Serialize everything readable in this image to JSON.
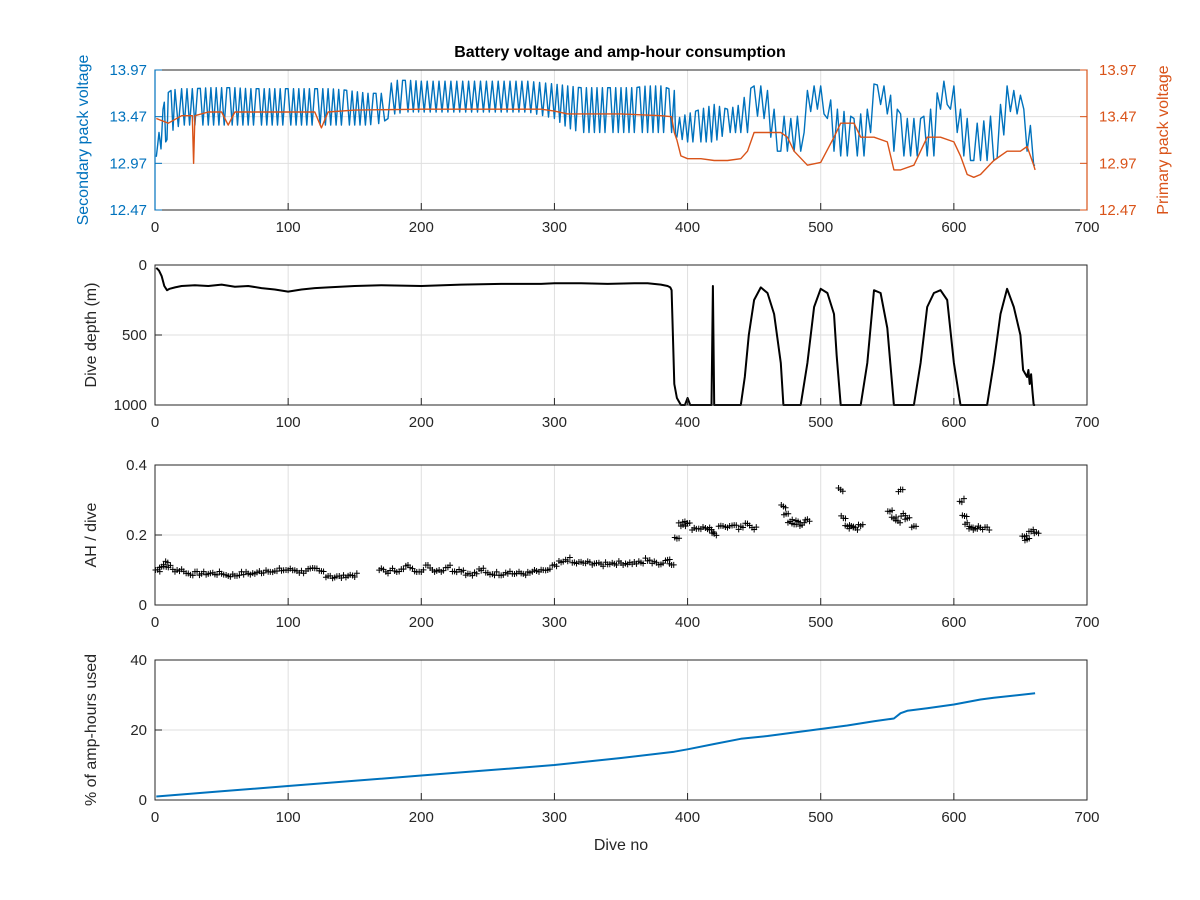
{
  "figure": {
    "title": "Battery voltage and amp-hour consumption"
  },
  "colors": {
    "blue": "#0072BD",
    "orange": "#D95319",
    "black": "#000000",
    "axis_text": "#262626",
    "grid": "#dfdfdf"
  },
  "chart_data": [
    {
      "type": "line",
      "title": "Battery voltage and amp-hour consumption",
      "xlabel": "",
      "ylabel_left": "Secondary pack voltage",
      "ylabel_right": "Primary pack voltage",
      "xlim": [
        0,
        700
      ],
      "ylim": [
        12.47,
        13.97
      ],
      "x_ticks": [
        0,
        100,
        200,
        300,
        400,
        500,
        600,
        700
      ],
      "y_ticks": [
        12.47,
        12.97,
        13.47,
        13.97
      ],
      "y_tick_labels": [
        "12.47",
        "12.97",
        "13.47",
        "13.97"
      ],
      "grid": true,
      "series": [
        {
          "name": "Secondary pack voltage",
          "axis": "left",
          "color": "#0072BD",
          "oscillating": true,
          "x": [
            1,
            3,
            6,
            8,
            10,
            12,
            15,
            20,
            30,
            40,
            50,
            60,
            70,
            80,
            90,
            100,
            110,
            120,
            130,
            140,
            150,
            160,
            170,
            175,
            180,
            190,
            200,
            220,
            240,
            260,
            280,
            300,
            310,
            320,
            330,
            340,
            350,
            360,
            370,
            380,
            390,
            392,
            400,
            410,
            420,
            430,
            440,
            445,
            450,
            455,
            460,
            465,
            470,
            475,
            480,
            485,
            490,
            495,
            500,
            505,
            510,
            515,
            520,
            525,
            530,
            535,
            540,
            545,
            550,
            555,
            560,
            565,
            570,
            575,
            580,
            585,
            590,
            595,
            600,
            605,
            610,
            615,
            620,
            625,
            630,
            635,
            640,
            645,
            650,
            655,
            660,
            661
          ],
          "low": [
            13.04,
            13.1,
            13.15,
            13.2,
            13.25,
            13.3,
            13.35,
            13.38,
            13.38,
            13.38,
            13.38,
            13.38,
            13.38,
            13.38,
            13.38,
            13.38,
            13.38,
            13.38,
            13.38,
            13.38,
            13.38,
            13.38,
            13.4,
            13.45,
            13.5,
            13.52,
            13.52,
            13.52,
            13.52,
            13.52,
            13.52,
            13.45,
            13.35,
            13.3,
            13.3,
            13.3,
            13.3,
            13.3,
            13.3,
            13.3,
            13.3,
            13.25,
            13.2,
            13.2,
            13.2,
            13.3,
            13.3,
            13.3,
            13.45,
            13.5,
            13.4,
            13.1,
            13.1,
            13.1,
            13.1,
            13.1,
            13.5,
            13.55,
            13.55,
            13.45,
            13.1,
            13.05,
            13.05,
            13.05,
            13.05,
            13.05,
            13.55,
            13.6,
            13.5,
            13.1,
            13.05,
            13.05,
            13.05,
            13.05,
            13.05,
            13.05,
            13.55,
            13.6,
            13.5,
            13.1,
            13.0,
            13.0,
            13.0,
            13.0,
            13.0,
            13.05,
            13.5,
            13.55,
            13.45,
            13.1,
            12.95,
            12.95
          ],
          "high": [
            13.04,
            13.3,
            13.55,
            13.7,
            13.73,
            13.75,
            13.76,
            13.77,
            13.77,
            13.78,
            13.78,
            13.78,
            13.77,
            13.77,
            13.77,
            13.77,
            13.77,
            13.77,
            13.77,
            13.76,
            13.74,
            13.72,
            13.72,
            13.8,
            13.86,
            13.86,
            13.85,
            13.85,
            13.85,
            13.85,
            13.85,
            13.82,
            13.8,
            13.78,
            13.78,
            13.78,
            13.78,
            13.78,
            13.8,
            13.8,
            13.75,
            13.45,
            13.5,
            13.55,
            13.6,
            13.55,
            13.6,
            13.75,
            13.8,
            13.8,
            13.75,
            13.55,
            13.5,
            13.45,
            13.45,
            13.5,
            13.75,
            13.8,
            13.8,
            13.75,
            13.55,
            13.55,
            13.5,
            13.45,
            13.5,
            13.55,
            13.82,
            13.8,
            13.8,
            13.6,
            13.5,
            13.45,
            13.45,
            13.45,
            13.5,
            13.6,
            13.85,
            13.85,
            13.8,
            13.55,
            13.45,
            13.4,
            13.4,
            13.45,
            13.5,
            13.6,
            13.8,
            13.75,
            13.7,
            13.4,
            13.35,
            13.3
          ]
        },
        {
          "name": "Primary pack voltage",
          "axis": "right",
          "color": "#D95319",
          "x": [
            1,
            10,
            20,
            28,
            29,
            30,
            40,
            50,
            55,
            60,
            80,
            100,
            110,
            120,
            125,
            130,
            150,
            200,
            250,
            290,
            300,
            310,
            320,
            350,
            380,
            388,
            390,
            392,
            395,
            400,
            410,
            420,
            430,
            440,
            445,
            450,
            460,
            470,
            475,
            480,
            490,
            500,
            510,
            515,
            520,
            525,
            530,
            540,
            550,
            555,
            560,
            570,
            580,
            590,
            600,
            605,
            610,
            615,
            620,
            630,
            640,
            650,
            655,
            660,
            661
          ],
          "y": [
            13.45,
            13.4,
            13.48,
            13.48,
            12.97,
            13.48,
            13.52,
            13.52,
            13.38,
            13.52,
            13.52,
            13.52,
            13.52,
            13.52,
            13.35,
            13.52,
            13.54,
            13.55,
            13.55,
            13.55,
            13.53,
            13.5,
            13.5,
            13.5,
            13.48,
            13.47,
            13.3,
            13.22,
            13.05,
            13.02,
            13.02,
            13.0,
            13.0,
            13.02,
            13.1,
            13.3,
            13.3,
            13.3,
            13.25,
            13.1,
            12.95,
            12.98,
            13.25,
            13.4,
            13.4,
            13.4,
            13.25,
            13.25,
            13.2,
            12.9,
            12.9,
            12.95,
            13.25,
            13.25,
            13.2,
            13.05,
            12.85,
            12.82,
            12.85,
            13.0,
            13.1,
            13.1,
            13.15,
            12.95,
            12.9
          ]
        }
      ]
    },
    {
      "type": "line",
      "xlabel": "",
      "ylabel": "Dive depth (m)",
      "xlim": [
        0,
        700
      ],
      "ylim": [
        0,
        1000
      ],
      "y_reversed": true,
      "x_ticks": [
        0,
        100,
        200,
        300,
        400,
        500,
        600,
        700
      ],
      "y_ticks": [
        0,
        500,
        1000
      ],
      "grid": true,
      "series": [
        {
          "color": "#000000",
          "x": [
            1,
            3,
            5,
            7,
            9,
            11,
            15,
            20,
            30,
            40,
            50,
            60,
            70,
            80,
            90,
            100,
            110,
            120,
            130,
            150,
            170,
            200,
            230,
            260,
            290,
            300,
            320,
            340,
            360,
            370,
            380,
            385,
            387,
            388,
            389,
            390,
            392,
            395,
            398,
            400,
            402,
            404,
            405,
            410,
            415,
            417,
            418,
            419,
            420,
            421,
            422,
            425,
            430,
            440,
            443,
            446,
            450,
            455,
            460,
            465,
            470,
            472,
            475,
            480,
            485,
            490,
            495,
            500,
            505,
            510,
            512,
            515,
            520,
            525,
            530,
            535,
            540,
            545,
            550,
            555,
            560,
            565,
            570,
            575,
            580,
            585,
            590,
            595,
            600,
            605,
            610,
            615,
            620,
            625,
            630,
            635,
            640,
            645,
            650,
            652,
            655,
            656,
            657,
            658,
            659,
            660,
            661
          ],
          "y": [
            20,
            40,
            80,
            150,
            180,
            170,
            160,
            150,
            145,
            150,
            140,
            155,
            150,
            165,
            175,
            190,
            175,
            165,
            160,
            150,
            145,
            150,
            140,
            135,
            135,
            130,
            130,
            135,
            130,
            130,
            140,
            150,
            160,
            180,
            500,
            850,
            950,
            1000,
            1000,
            950,
            1000,
            1000,
            1000,
            1000,
            1000,
            1000,
            1000,
            150,
            1000,
            1000,
            1000,
            1000,
            1000,
            1000,
            800,
            500,
            250,
            160,
            200,
            350,
            700,
            1000,
            1000,
            1000,
            1000,
            700,
            300,
            170,
            200,
            350,
            650,
            1000,
            1000,
            1000,
            1000,
            700,
            180,
            200,
            450,
            1000,
            1000,
            1000,
            1000,
            700,
            300,
            200,
            180,
            250,
            700,
            1000,
            1000,
            1000,
            1000,
            1000,
            700,
            350,
            170,
            300,
            500,
            750,
            800,
            750,
            850,
            780,
            900,
            1000,
            1000
          ]
        }
      ]
    },
    {
      "type": "scatter",
      "xlabel": "",
      "ylabel": "AH / dive",
      "xlim": [
        0,
        700
      ],
      "ylim": [
        0,
        0.4
      ],
      "x_ticks": [
        0,
        100,
        200,
        300,
        400,
        500,
        600,
        700
      ],
      "y_ticks": [
        0,
        0.2,
        0.4
      ],
      "y_tick_labels": [
        "0",
        "0.2",
        "0.4"
      ],
      "grid": true,
      "marker": "+",
      "series": [
        {
          "color": "#000000",
          "jitter": 0.012,
          "x": [
            2,
            5,
            8,
            10,
            15,
            20,
            25,
            30,
            35,
            40,
            45,
            50,
            55,
            60,
            65,
            70,
            75,
            80,
            85,
            90,
            95,
            100,
            105,
            110,
            115,
            120,
            125,
            130,
            135,
            140,
            145,
            150,
            170,
            175,
            180,
            185,
            190,
            195,
            200,
            205,
            210,
            215,
            220,
            225,
            230,
            235,
            240,
            245,
            250,
            255,
            260,
            265,
            270,
            275,
            280,
            285,
            290,
            295,
            300,
            305,
            310,
            315,
            320,
            325,
            330,
            335,
            340,
            345,
            350,
            355,
            360,
            365,
            370,
            375,
            380,
            385,
            388,
            392,
            395,
            398,
            400,
            405,
            410,
            415,
            418,
            420,
            425,
            430,
            435,
            440,
            445,
            450,
            472,
            474,
            477,
            480,
            483,
            486,
            490,
            515,
            517,
            520,
            523,
            526,
            530,
            552,
            555,
            558,
            560,
            562,
            565,
            570,
            606,
            608,
            610,
            613,
            616,
            620,
            625,
            653,
            655,
            658,
            662
          ],
          "y": [
            0.1,
            0.11,
            0.12,
            0.11,
            0.1,
            0.1,
            0.09,
            0.09,
            0.09,
            0.09,
            0.09,
            0.09,
            0.085,
            0.085,
            0.09,
            0.09,
            0.09,
            0.095,
            0.1,
            0.095,
            0.1,
            0.1,
            0.1,
            0.095,
            0.1,
            0.1,
            0.095,
            0.085,
            0.08,
            0.08,
            0.085,
            0.085,
            0.1,
            0.095,
            0.1,
            0.1,
            0.11,
            0.1,
            0.1,
            0.11,
            0.1,
            0.1,
            0.11,
            0.1,
            0.1,
            0.09,
            0.09,
            0.1,
            0.09,
            0.09,
            0.09,
            0.095,
            0.09,
            0.09,
            0.09,
            0.095,
            0.095,
            0.1,
            0.11,
            0.12,
            0.13,
            0.12,
            0.12,
            0.12,
            0.12,
            0.115,
            0.12,
            0.12,
            0.12,
            0.12,
            0.12,
            0.12,
            0.13,
            0.12,
            0.12,
            0.13,
            0.12,
            0.19,
            0.23,
            0.24,
            0.23,
            0.22,
            0.22,
            0.22,
            0.21,
            0.2,
            0.23,
            0.22,
            0.23,
            0.22,
            0.23,
            0.22,
            0.28,
            0.26,
            0.24,
            0.23,
            0.24,
            0.23,
            0.24,
            0.33,
            0.25,
            0.23,
            0.22,
            0.22,
            0.23,
            0.27,
            0.25,
            0.24,
            0.33,
            0.26,
            0.25,
            0.22,
            0.3,
            0.25,
            0.23,
            0.22,
            0.22,
            0.22,
            0.22,
            0.2,
            0.19,
            0.21,
            0.21
          ]
        }
      ]
    },
    {
      "type": "line",
      "xlabel": "Dive no",
      "ylabel": "% of amp-hours used",
      "xlim": [
        0,
        700
      ],
      "ylim": [
        0,
        40
      ],
      "x_ticks": [
        0,
        100,
        200,
        300,
        400,
        500,
        600,
        700
      ],
      "y_ticks": [
        0,
        20,
        40
      ],
      "grid": true,
      "series": [
        {
          "color": "#0072BD",
          "x": [
            1,
            50,
            100,
            150,
            200,
            250,
            300,
            350,
            390,
            400,
            420,
            440,
            460,
            480,
            500,
            520,
            540,
            555,
            560,
            565,
            580,
            600,
            620,
            630,
            661
          ],
          "y": [
            1,
            2.5,
            4,
            5.5,
            7,
            8.5,
            10,
            12,
            13.8,
            14.5,
            16,
            17.5,
            18.3,
            19.3,
            20.3,
            21.3,
            22.5,
            23.3,
            24.8,
            25.5,
            26.2,
            27.3,
            28.7,
            29.2,
            30.5
          ]
        }
      ]
    }
  ]
}
